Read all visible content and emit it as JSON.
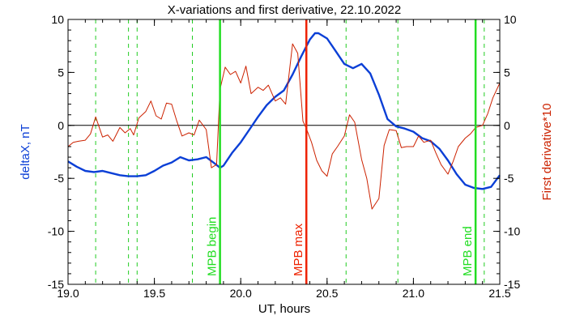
{
  "chart_data": {
    "type": "line",
    "title": "X-variations and first derivative, 22.10.2022",
    "xlabel": "UT, hours",
    "ylabel_left": "deltaX, nT",
    "ylabel_right": "First derivative*10",
    "xlim": [
      19.0,
      21.5
    ],
    "ylim": [
      -15,
      10
    ],
    "x_ticks": [
      19.0,
      19.5,
      20.0,
      20.5,
      21.0,
      21.5
    ],
    "x_tick_labels": [
      "19.0",
      "19.5",
      "20.0",
      "20.5",
      "21.0",
      "21.5"
    ],
    "y_ticks": [
      -15,
      -10,
      -5,
      0,
      5,
      10
    ],
    "y_tick_labels": [
      "-15",
      "-10",
      "-5",
      "0",
      "5",
      "10"
    ],
    "grid": false,
    "colors": {
      "deltaX": "#0b3fd6",
      "derivative": "#cc2200",
      "mpb_begin_end": "#22dd22",
      "mpb_max": "#ee2200",
      "dashed": "#22cc22",
      "zero": "#000000",
      "right_label": "#cc2200",
      "left_label": "#0b3fd6"
    },
    "series": [
      {
        "key": "deltaX",
        "x": [
          19.0,
          19.05,
          19.1,
          19.15,
          19.2,
          19.25,
          19.3,
          19.35,
          19.4,
          19.45,
          19.5,
          19.55,
          19.6,
          19.65,
          19.7,
          19.75,
          19.8,
          19.85,
          19.88,
          19.9,
          19.95,
          20.0,
          20.05,
          20.1,
          20.15,
          20.2,
          20.25,
          20.3,
          20.35,
          20.4,
          20.43,
          20.45,
          20.5,
          20.55,
          20.6,
          20.65,
          20.7,
          20.75,
          20.8,
          20.85,
          20.9,
          20.95,
          21.0,
          21.05,
          21.1,
          21.15,
          21.2,
          21.25,
          21.3,
          21.35,
          21.4,
          21.45,
          21.5
        ],
        "y": [
          -3.4,
          -3.9,
          -4.3,
          -4.4,
          -4.3,
          -4.5,
          -4.7,
          -4.8,
          -4.8,
          -4.7,
          -4.3,
          -3.8,
          -3.5,
          -3.0,
          -3.3,
          -3.2,
          -3.0,
          -3.6,
          -4.0,
          -3.8,
          -2.6,
          -1.6,
          -0.4,
          0.8,
          1.9,
          2.7,
          3.3,
          4.8,
          6.5,
          8.1,
          8.7,
          8.7,
          8.2,
          7.0,
          5.8,
          5.4,
          5.8,
          4.9,
          2.9,
          0.6,
          -0.1,
          -0.3,
          -0.6,
          -1.2,
          -1.5,
          -2.2,
          -3.3,
          -4.6,
          -5.6,
          -5.9,
          -6.0,
          -5.8,
          -4.7
        ]
      },
      {
        "key": "derivative",
        "x": [
          19.0,
          19.03,
          19.06,
          19.1,
          19.13,
          19.16,
          19.2,
          19.23,
          19.26,
          19.3,
          19.33,
          19.36,
          19.38,
          19.41,
          19.45,
          19.48,
          19.51,
          19.54,
          19.57,
          19.6,
          19.63,
          19.66,
          19.7,
          19.73,
          19.76,
          19.8,
          19.83,
          19.86,
          19.88,
          19.91,
          19.94,
          19.97,
          20.0,
          20.03,
          20.06,
          20.1,
          20.13,
          20.16,
          20.2,
          20.23,
          20.26,
          20.3,
          20.33,
          20.36,
          20.38,
          20.41,
          20.44,
          20.47,
          20.5,
          20.53,
          20.56,
          20.6,
          20.63,
          20.66,
          20.7,
          20.73,
          20.76,
          20.8,
          20.83,
          20.86,
          20.9,
          20.93,
          20.96,
          21.0,
          21.03,
          21.06,
          21.1,
          21.13,
          21.16,
          21.2,
          21.23,
          21.26,
          21.3,
          21.33,
          21.36,
          21.4,
          21.43,
          21.46,
          21.5
        ],
        "y": [
          -2.0,
          -1.6,
          -1.5,
          -1.4,
          -0.8,
          0.8,
          -1.1,
          -0.9,
          -1.5,
          -0.2,
          -0.7,
          -0.3,
          -0.9,
          0.7,
          1.3,
          2.3,
          0.9,
          0.6,
          2.1,
          2.0,
          0.4,
          -1.0,
          -0.7,
          -0.9,
          0.5,
          -0.4,
          -4.0,
          -3.7,
          3.4,
          5.5,
          4.8,
          5.1,
          4.0,
          5.6,
          3.0,
          3.6,
          3.3,
          3.8,
          2.3,
          2.6,
          2.0,
          7.7,
          6.8,
          0.4,
          -0.3,
          -1.6,
          -3.3,
          -4.3,
          -4.8,
          -2.7,
          -2.0,
          -1.0,
          1.0,
          0.3,
          -3.2,
          -5.0,
          -7.9,
          -6.9,
          -1.9,
          -0.4,
          -0.5,
          -2.1,
          -2.0,
          -2.0,
          -1.0,
          -1.6,
          -1.4,
          -2.6,
          -3.7,
          -4.6,
          -3.4,
          -2.0,
          -1.2,
          -0.8,
          -0.2,
          0.0,
          1.1,
          2.6,
          4.0
        ]
      }
    ],
    "dashed_lines_x": [
      19.16,
      19.35,
      19.4,
      19.72,
      20.61,
      20.91,
      21.41
    ],
    "markers": [
      {
        "x": 19.88,
        "label": "MPB begin",
        "color_key": "mpb_begin_end"
      },
      {
        "x": 20.38,
        "label": "MPB max",
        "color_key": "mpb_max"
      },
      {
        "x": 21.36,
        "label": "MPB end",
        "color_key": "mpb_begin_end"
      }
    ]
  }
}
